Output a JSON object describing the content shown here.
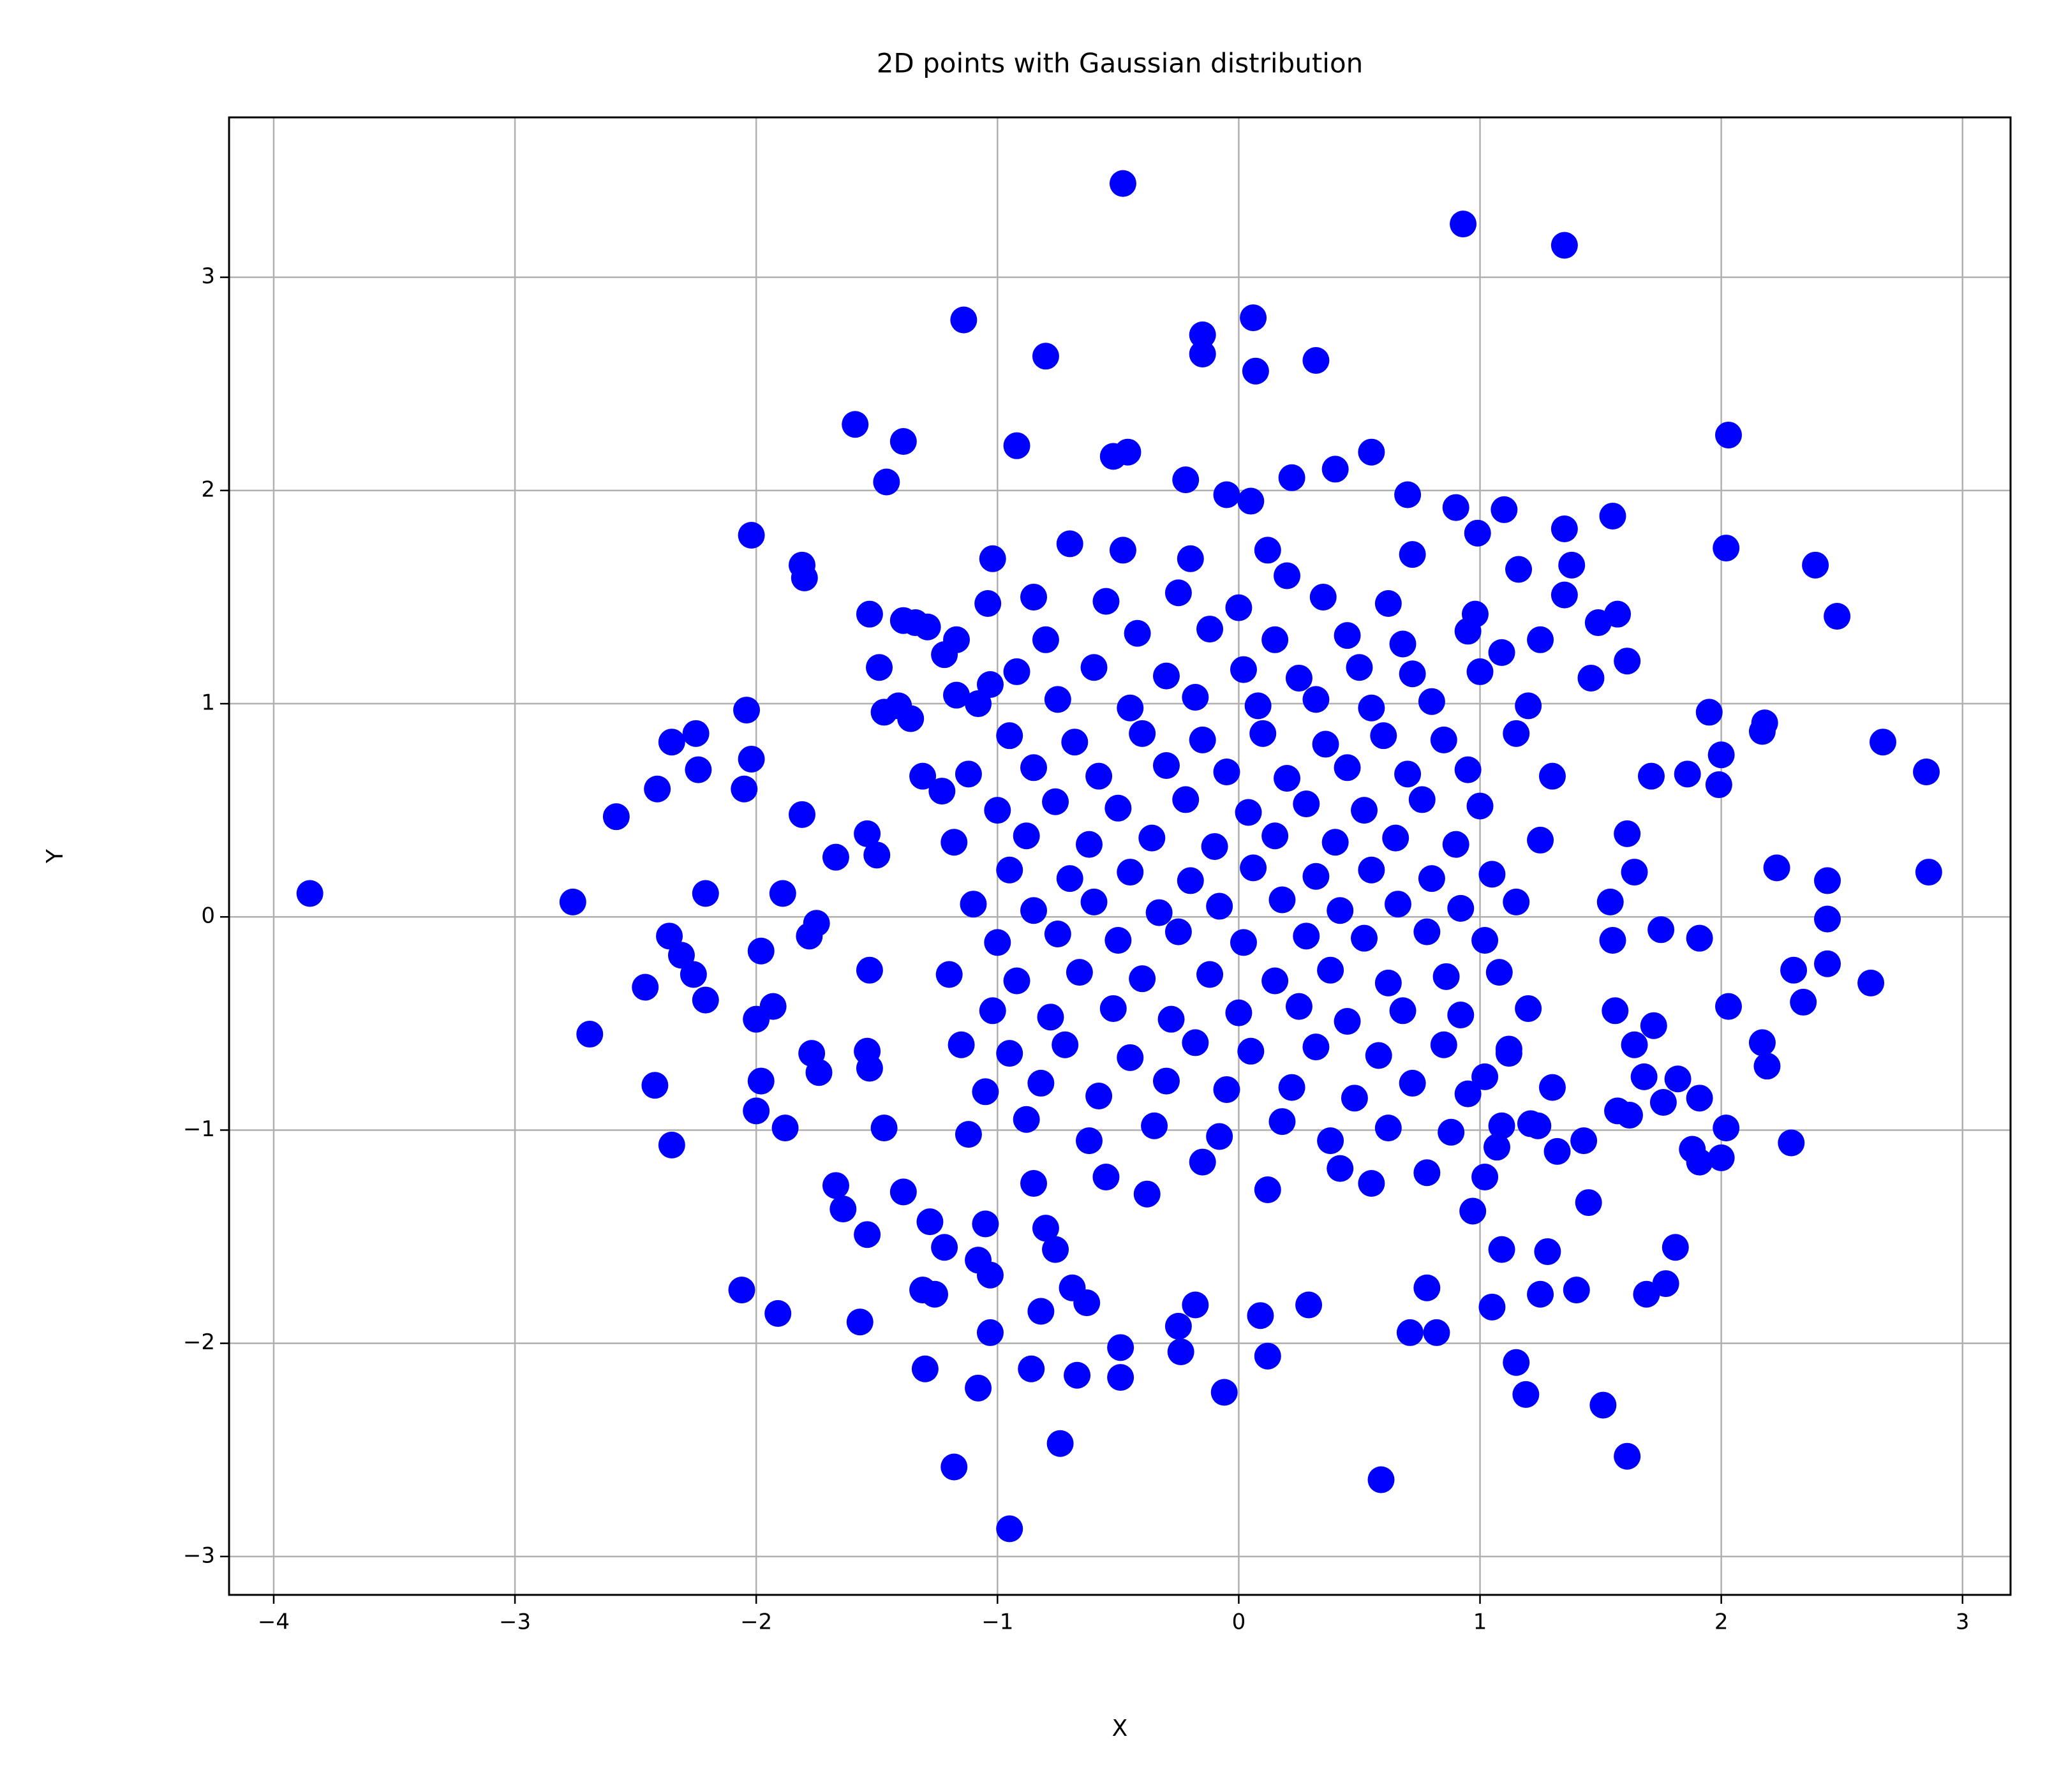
{
  "chart_data": {
    "type": "scatter",
    "title": "2D points with Gaussian distribution",
    "x_label": "X",
    "y_label": "Y",
    "color": "#0000ff",
    "grid": true,
    "xlim": [
      -4.185,
      3.199
    ],
    "ylim": [
      -3.18,
      3.75
    ],
    "xticks": [
      {
        "value": -4,
        "label": "−4"
      },
      {
        "value": -3,
        "label": "−3"
      },
      {
        "value": -2,
        "label": "−2"
      },
      {
        "value": -1,
        "label": "−1"
      },
      0,
      1,
      2,
      3
    ],
    "yticks": [
      {
        "value": -3,
        "label": "−3"
      },
      {
        "value": -2,
        "label": "−2"
      },
      {
        "value": -1,
        "label": "−1"
      },
      0,
      1,
      2,
      3
    ],
    "x": [
      -3.85,
      -2.76,
      -2.69,
      -2.58,
      -2.41,
      -2.46,
      -2.42,
      -2.35,
      -2.35,
      -2.25,
      -2.24,
      -2.21,
      -2.36,
      -2.31,
      -2.26,
      -2.21,
      -2.02,
      -2.04,
      -2.02,
      -2.05,
      -2.06,
      -1.91,
      -2.0,
      -1.98,
      -1.98,
      -2.0,
      -1.93,
      -1.88,
      -1.89,
      -1.81,
      -1.81,
      -1.8,
      -1.77,
      -1.74,
      -1.78,
      -1.75,
      -1.67,
      -1.67,
      -1.64,
      -1.59,
      -1.57,
      -1.54,
      -1.53,
      -1.49,
      -1.47,
      -1.54,
      -1.5,
      -1.53,
      -1.54,
      -1.53,
      -1.47,
      -1.46,
      -1.39,
      -1.39,
      -1.28,
      -1.31,
      -1.26,
      -1.3,
      -1.39,
      -1.34,
      -1.29,
      -1.22,
      -1.17,
      -1.41,
      -1.36,
      -1.31,
      -1.23,
      -1.17,
      -1.14,
      -1.18,
      -1.22,
      -1.08,
      -1.05,
      -1.03,
      -1.03,
      -1.08,
      -0.95,
      -0.92,
      -1.02,
      -1.04,
      -1.03,
      -0.8,
      -0.86,
      -0.74,
      -0.67,
      -0.48,
      -0.52,
      -0.46,
      -0.49,
      -0.49,
      -0.15,
      -0.15,
      0.06,
      0.07,
      0.32,
      0.93,
      1.35,
      0.55,
      0.4,
      -0.06,
      0.59,
      1.15,
      1.19,
      1.51,
      1.61,
      2.03,
      2.02,
      2.39,
      2.48,
      1.55,
      1.35,
      1.1,
      0.99,
      0.9,
      2.67,
      2.85,
      2.86,
      2.62,
      2.44,
      2.44,
      2.44,
      2.23,
      2.3,
      2.34,
      2.29,
      2.17,
      2.19,
      2.03,
      2.02,
      2.0,
      1.91,
      1.88,
      1.91,
      2.18,
      2.17,
      1.95,
      2.0,
      1.99,
      1.86,
      1.71,
      1.91,
      1.75,
      1.81,
      1.77,
      1.69,
      1.45,
      1.4,
      1.25,
      1.28,
      1.05,
      0.82,
      0.71,
      0.78,
      0.29,
      0.12,
      0.09,
      -0.24,
      -0.18,
      -0.25,
      -0.63,
      -0.69,
      -0.82,
      -0.76,
      -0.8,
      1.61,
      1.57,
      1.49,
      1.46,
      1.35,
      1.38,
      1.16,
      1.25,
      1.09,
      1.61,
      1.64,
      1.54,
      1.55,
      1.56,
      1.64,
      1.72,
      1.68,
      1.76,
      1.82,
      1.57,
      1.62,
      1.43,
      1.32,
      1.24,
      1.09,
      1.07,
      1.09,
      0.97,
      1.02,
      1.12,
      -0.85,
      -0.55,
      -0.38,
      -0.15,
      0.12,
      0.42,
      0.55,
      0.78,
      1.02,
      -1.12,
      -0.88,
      -0.62,
      -0.35,
      -0.08,
      0.18,
      0.38,
      0.62,
      0.88,
      1.21,
      -1.05,
      -0.82,
      -0.58,
      -0.3,
      -0.05,
      0.22,
      0.48,
      0.72,
      0.95,
      1.3,
      -1.15,
      -0.95,
      -0.72,
      -0.45,
      -0.18,
      0.05,
      0.32,
      0.58,
      0.85,
      1.12,
      -1.02,
      -0.78,
      -0.52,
      -0.28,
      0,
      0.25,
      0.45,
      0.68,
      0.92,
      1.2,
      -1.2,
      -0.92,
      -0.66,
      -0.4,
      -0.12,
      0.15,
      0.38,
      0.62,
      0.86,
      1.08,
      -1.0,
      -0.75,
      -0.5,
      -0.25,
      0.02,
      0.28,
      0.52,
      0.78,
      1.02,
      -1.1,
      -0.85,
      -0.6,
      -0.33,
      -0.08,
      0.18,
      0.42,
      0.66,
      0.92,
      1.15,
      -0.95,
      -0.7,
      -0.45,
      -0.2,
      0.06,
      0.32,
      0.55,
      0.8,
      1.05,
      -1.18,
      -0.88,
      -0.62,
      -0.36,
      -0.1,
      0.15,
      0.4,
      0.65,
      0.9,
      1.25,
      -1.0,
      -0.76,
      -0.5,
      -0.22,
      0.04,
      0.28,
      0.52,
      0.76,
      1.0,
      -1.12,
      -0.85,
      -0.58,
      -0.3,
      -0.05,
      0.2,
      0.45,
      0.7,
      0.95,
      1.3,
      -0.95,
      -0.68,
      -0.4,
      -0.15,
      0.1,
      0.36,
      0.6,
      0.85,
      1.15,
      -1.08,
      -0.75,
      -0.45,
      -0.18,
      0.08,
      0.32,
      0.55,
      0.8,
      1.2,
      -0.92,
      -0.6,
      -0.3,
      0.02,
      0.25,
      0.5,
      0.72,
      1.0,
      -0.8,
      -0.42,
      -0.12,
      0.15,
      0.45,
      0.68,
      0.95,
      -0.85,
      -0.55,
      -0.25,
      0,
      0.35,
      0.62,
      0.98,
      -0.7,
      -0.48,
      -0.2,
      0.12,
      0.2,
      0.72,
      -0.22,
      0.05,
      0.22,
      -0.05,
      0.7
    ],
    "values": [
      0.11,
      0.07,
      -0.55,
      0.47,
      0.6,
      -0.33,
      -0.79,
      -1.07,
      0.82,
      0.86,
      0.69,
      0.11,
      -0.09,
      -0.18,
      -0.27,
      -0.39,
      1.79,
      0.97,
      0.74,
      0.6,
      -1.75,
      -1.86,
      -0.91,
      -0.77,
      -0.16,
      -0.48,
      -0.42,
      -0.99,
      0.11,
      0.48,
      1.65,
      1.59,
      -0.64,
      -0.73,
      -0.09,
      -0.03,
      0.28,
      -1.26,
      -1.37,
      2.31,
      -1.9,
      -1.49,
      1.42,
      1.17,
      0.96,
      0.39,
      0.29,
      -0.25,
      -0.63,
      -0.71,
      -0.99,
      2.04,
      2.23,
      -1.29,
      -1.43,
      -1.75,
      -1.77,
      -2.12,
      1.39,
      1.38,
      1.36,
      1.23,
      1.3,
      0.99,
      0.93,
      0.66,
      0.59,
      1.04,
      2.8,
      -2.58,
      -1.55,
      -1.61,
      -1.44,
      -1.68,
      -1.95,
      -2.21,
      -2.87,
      2.21,
      1.68,
      1.47,
      1.09,
      2.63,
      -2.12,
      -2.47,
      -2.15,
      3.44,
      2.16,
      2.18,
      -2.16,
      -2.02,
      2.73,
      2.64,
      2.81,
      2.56,
      2.61,
      3.25,
      3.15,
      2.18,
      2.1,
      -2.23,
      -2.64,
      -2.09,
      -2.24,
      -2.29,
      -2.53,
      2.26,
      1.73,
      1.65,
      1.41,
      1.88,
      1.82,
      1.91,
      1.8,
      1.92,
      0.82,
      0.68,
      0.21,
      -0.31,
      0.17,
      -0.01,
      -0.22,
      0.23,
      -0.25,
      -0.4,
      -1.06,
      -0.59,
      -0.7,
      -0.42,
      -0.99,
      -1.13,
      -1.15,
      -1.09,
      -0.85,
      0.91,
      0.87,
      0.96,
      0.76,
      0.62,
      0.67,
      0.66,
      -0.1,
      -0.06,
      -1.55,
      -1.72,
      -1.77,
      -1.34,
      -1.75,
      -1.77,
      -1.57,
      -1.83,
      -1.95,
      -1.95,
      -1.74,
      -1.82,
      -2.06,
      -1.87,
      -2.04,
      -1.82,
      -1.92,
      -1.81,
      -1.74,
      -1.85,
      -1.56,
      -1.46,
      1.2,
      1.42,
      1.38,
      1.12,
      1.51,
      1.65,
      1.63,
      1.3,
      1.24,
      0.39,
      0.21,
      0.07,
      -0.11,
      -0.44,
      -0.6,
      -0.51,
      -0.75,
      -0.87,
      -0.76,
      -0.91,
      -0.93,
      -1.05,
      -1.1,
      -0.98,
      -0.98,
      -1.08,
      -1.56,
      -1.38,
      -0.75,
      -0.62,
      -1.25,
      -1.22,
      -1.3,
      -1.15,
      -1.28,
      -1.18,
      -1.25,
      -1.2,
      -1.22,
      -1.02,
      -0.95,
      -1.05,
      -0.98,
      -1.03,
      -0.96,
      -1.05,
      -0.99,
      -1.01,
      -0.97,
      -0.82,
      -0.78,
      -0.84,
      -0.77,
      -0.81,
      -0.8,
      -0.85,
      -0.78,
      -0.83,
      -0.8,
      -0.6,
      -0.64,
      -0.6,
      -0.66,
      -0.59,
      -0.63,
      -0.61,
      -0.65,
      -0.6,
      -0.64,
      -0.44,
      -0.47,
      -0.43,
      -0.48,
      -0.45,
      -0.42,
      -0.49,
      -0.44,
      -0.46,
      -0.43,
      -0.27,
      -0.3,
      -0.26,
      -0.29,
      -0.27,
      -0.3,
      -0.25,
      -0.31,
      -0.28,
      -0.26,
      -0.12,
      -0.08,
      -0.11,
      -0.07,
      -0.12,
      -0.09,
      -0.1,
      -0.07,
      -0.11,
      0.06,
      0.03,
      0.07,
      0.02,
      0.05,
      0.08,
      0.03,
      0.06,
      0.04,
      0.07,
      0.22,
      0.18,
      0.21,
      0.17,
      0.23,
      0.19,
      0.22,
      0.18,
      0.2,
      0.35,
      0.38,
      0.34,
      0.37,
      0.33,
      0.38,
      0.35,
      0.37,
      0.34,
      0.36,
      0.5,
      0.54,
      0.51,
      0.55,
      0.49,
      0.53,
      0.5,
      0.55,
      0.52,
      0.67,
      0.7,
      0.66,
      0.71,
      0.68,
      0.65,
      0.7,
      0.67,
      0.69,
      0.66,
      0.85,
      0.82,
      0.86,
      0.83,
      0.86,
      0.81,
      0.85,
      0.83,
      0.86,
      1.0,
      1.02,
      0.98,
      1.03,
      0.99,
      1.02,
      0.98,
      1.01,
      0.99,
      1.15,
      1.17,
      1.13,
      1.16,
      1.12,
      1.17,
      1.14,
      1.15,
      1.3,
      1.33,
      1.35,
      1.3,
      1.32,
      1.28,
      1.34,
      1.5,
      1.48,
      1.52,
      1.45,
      1.5,
      1.47,
      1.42,
      1.75,
      1.72,
      1.68,
      1.72,
      1.6,
      1.7,
      2.05,
      1.95,
      2.06,
      1.98,
      1.98
    ]
  }
}
